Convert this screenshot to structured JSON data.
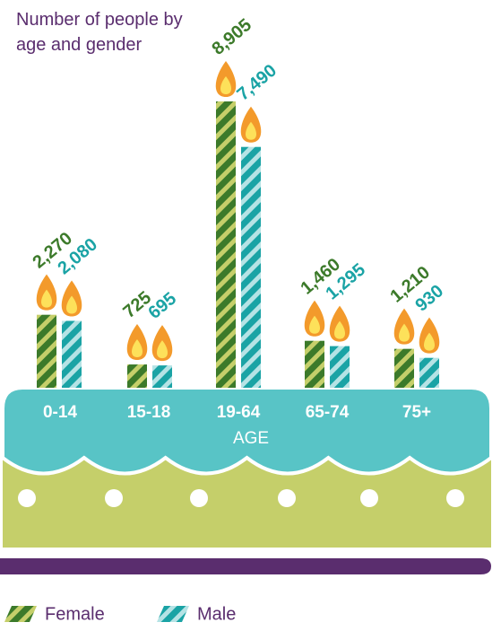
{
  "chart_data": {
    "type": "bar",
    "title": "Number of people by age and gender",
    "x_label": "AGE",
    "categories": [
      "0-14",
      "15-18",
      "19-64",
      "65-74",
      "75+"
    ],
    "series": [
      {
        "name": "Female",
        "color": "#3c7a2a",
        "stripe_color": "#c5cf6a",
        "values": [
          2270,
          725,
          8905,
          1460,
          1210
        ],
        "value_labels": [
          "2,270",
          "725",
          "8,905",
          "1,460",
          "1,210"
        ]
      },
      {
        "name": "Male",
        "color": "#1aa3a5",
        "stripe_color": "#b5e3e5",
        "values": [
          2080,
          695,
          7490,
          1295,
          930
        ],
        "value_labels": [
          "2,080",
          "695",
          "7,490",
          "1,295",
          "930"
        ]
      }
    ]
  }
}
